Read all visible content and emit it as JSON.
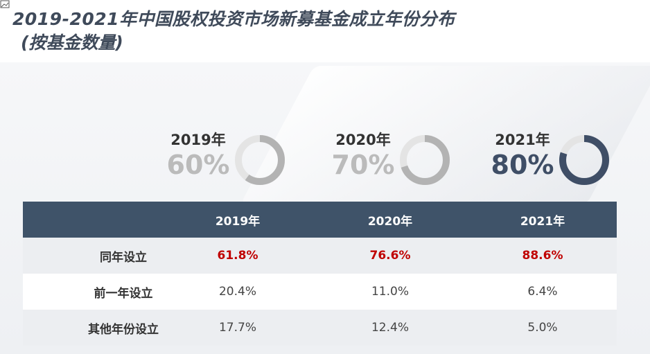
{
  "title": "2019-2021年中国股权投资市场新募基金成立年份分布",
  "subtitle": "(按基金数量)",
  "colors": {
    "header_bg": "#3f5369",
    "ring_gray": "#b3b3b3",
    "ring_track": "#e4e4e4",
    "ring_dark": "#3f4e66",
    "highlight_red": "#c00000"
  },
  "summary": [
    {
      "year": "2019年",
      "percent": "60%",
      "fraction": 0.6
    },
    {
      "year": "2020年",
      "percent": "70%",
      "fraction": 0.7
    },
    {
      "year": "2021年",
      "percent": "80%",
      "fraction": 0.8
    }
  ],
  "chart_data": {
    "type": "table",
    "columns": [
      "",
      "2019年",
      "2020年",
      "2021年"
    ],
    "rows": [
      {
        "label": "同年设立",
        "values": [
          "61.8%",
          "76.6%",
          "88.6%"
        ]
      },
      {
        "label": "前一年设立",
        "values": [
          "20.4%",
          "11.0%",
          "6.4%"
        ]
      },
      {
        "label": "其他年份设立",
        "values": [
          "17.7%",
          "12.4%",
          "5.0%"
        ]
      }
    ],
    "donuts": [
      {
        "category": "2019年",
        "value": 60
      },
      {
        "category": "2020年",
        "value": 70
      },
      {
        "category": "2021年",
        "value": 80
      }
    ]
  }
}
